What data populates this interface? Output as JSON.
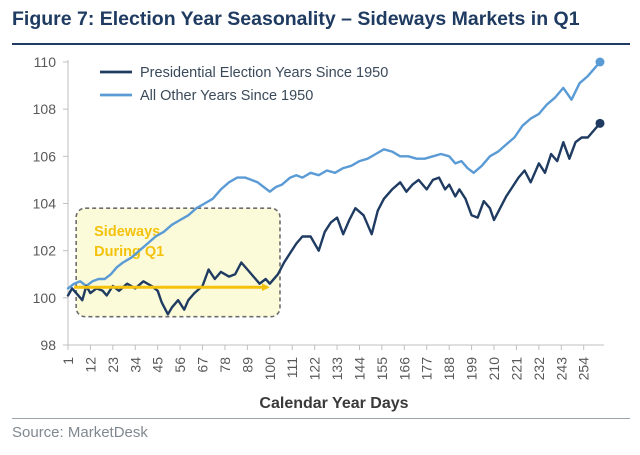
{
  "chart_data": {
    "type": "line",
    "title": "Figure 7: Election Year Seasonality – Sideways Markets in Q1",
    "xlabel": "Calendar Year Days",
    "ylabel": "",
    "ylim": [
      98,
      110
    ],
    "xlim": [
      1,
      262
    ],
    "yticks": [
      98,
      100,
      102,
      104,
      106,
      108,
      110
    ],
    "xticks": [
      "1",
      "12",
      "23",
      "34",
      "45",
      "56",
      "67",
      "78",
      "89",
      "100",
      "111",
      "122",
      "133",
      "144",
      "155",
      "166",
      "177",
      "188",
      "199",
      "210",
      "221",
      "232",
      "243",
      "254"
    ],
    "grid": false,
    "legend_position": "top-left",
    "series": [
      {
        "name": "Presidential Election Years Since 1950",
        "color": "#1f3b61",
        "x": [
          1,
          3,
          5,
          8,
          10,
          12,
          15,
          18,
          20,
          23,
          26,
          30,
          34,
          38,
          42,
          45,
          47,
          50,
          52,
          55,
          58,
          60,
          63,
          67,
          70,
          73,
          76,
          80,
          83,
          86,
          89,
          92,
          95,
          98,
          100,
          104,
          107,
          110,
          113,
          116,
          120,
          124,
          127,
          130,
          133,
          136,
          139,
          142,
          146,
          150,
          153,
          156,
          160,
          164,
          167,
          170,
          173,
          177,
          180,
          183,
          186,
          188,
          191,
          193,
          196,
          199,
          202,
          205,
          208,
          210,
          213,
          216,
          219,
          222,
          225,
          228,
          232,
          235,
          238,
          241,
          244,
          247,
          250,
          253,
          256,
          259,
          262
        ],
        "y": [
          100.1,
          100.4,
          100.2,
          99.9,
          100.5,
          100.2,
          100.4,
          100.3,
          100.1,
          100.5,
          100.3,
          100.6,
          100.4,
          100.7,
          100.5,
          100.3,
          99.8,
          99.3,
          99.6,
          99.9,
          99.5,
          99.9,
          100.2,
          100.5,
          101.2,
          100.8,
          101.1,
          100.9,
          101.0,
          101.5,
          101.2,
          100.9,
          100.6,
          100.8,
          100.6,
          101.0,
          101.5,
          101.9,
          102.3,
          102.6,
          102.6,
          102.0,
          102.8,
          103.2,
          103.4,
          102.7,
          103.3,
          103.8,
          103.5,
          102.7,
          103.7,
          104.2,
          104.6,
          104.9,
          104.5,
          104.8,
          105.0,
          104.6,
          105.0,
          105.1,
          104.6,
          104.8,
          104.3,
          104.6,
          104.2,
          103.5,
          103.4,
          104.1,
          103.8,
          103.3,
          103.8,
          104.3,
          104.7,
          105.1,
          105.4,
          104.9,
          105.7,
          105.3,
          106.1,
          105.8,
          106.6,
          105.9,
          106.6,
          106.8,
          106.8,
          107.1,
          107.4
        ]
      },
      {
        "name": "All Other Years Since 1950",
        "color": "#5b9bd5",
        "x": [
          1,
          4,
          7,
          10,
          13,
          16,
          19,
          22,
          25,
          28,
          32,
          36,
          40,
          44,
          48,
          52,
          56,
          60,
          64,
          68,
          72,
          76,
          80,
          84,
          88,
          91,
          94,
          97,
          100,
          103,
          106,
          110,
          113,
          116,
          120,
          124,
          128,
          132,
          136,
          140,
          144,
          148,
          152,
          156,
          160,
          164,
          168,
          172,
          176,
          180,
          184,
          188,
          191,
          194,
          197,
          200,
          204,
          208,
          212,
          216,
          220,
          224,
          228,
          232,
          236,
          240,
          244,
          248,
          252,
          256,
          259,
          262
        ],
        "y": [
          100.4,
          100.6,
          100.7,
          100.5,
          100.7,
          100.8,
          100.8,
          101.0,
          101.3,
          101.5,
          101.7,
          102.0,
          102.3,
          102.6,
          102.8,
          103.1,
          103.3,
          103.5,
          103.8,
          104.0,
          104.2,
          104.6,
          104.9,
          105.1,
          105.1,
          105.0,
          104.9,
          104.7,
          104.5,
          104.7,
          104.8,
          105.1,
          105.2,
          105.1,
          105.3,
          105.2,
          105.4,
          105.3,
          105.5,
          105.6,
          105.8,
          105.9,
          106.1,
          106.3,
          106.2,
          106.0,
          106.0,
          105.9,
          105.9,
          106.0,
          106.1,
          106.0,
          105.7,
          105.8,
          105.5,
          105.3,
          105.6,
          106.0,
          106.2,
          106.5,
          106.8,
          107.3,
          107.6,
          107.8,
          108.2,
          108.5,
          108.9,
          108.4,
          109.1,
          109.4,
          109.7,
          110.0
        ]
      }
    ],
    "annotation": {
      "line1": "Sideways",
      "line2": "During Q1",
      "box_x_range": [
        5,
        105
      ],
      "box_y_range": [
        99.2,
        103.8
      ],
      "arrow_y": 100.45,
      "arrow_x_range": [
        4,
        99
      ]
    },
    "source": "Source: MarketDesk"
  }
}
